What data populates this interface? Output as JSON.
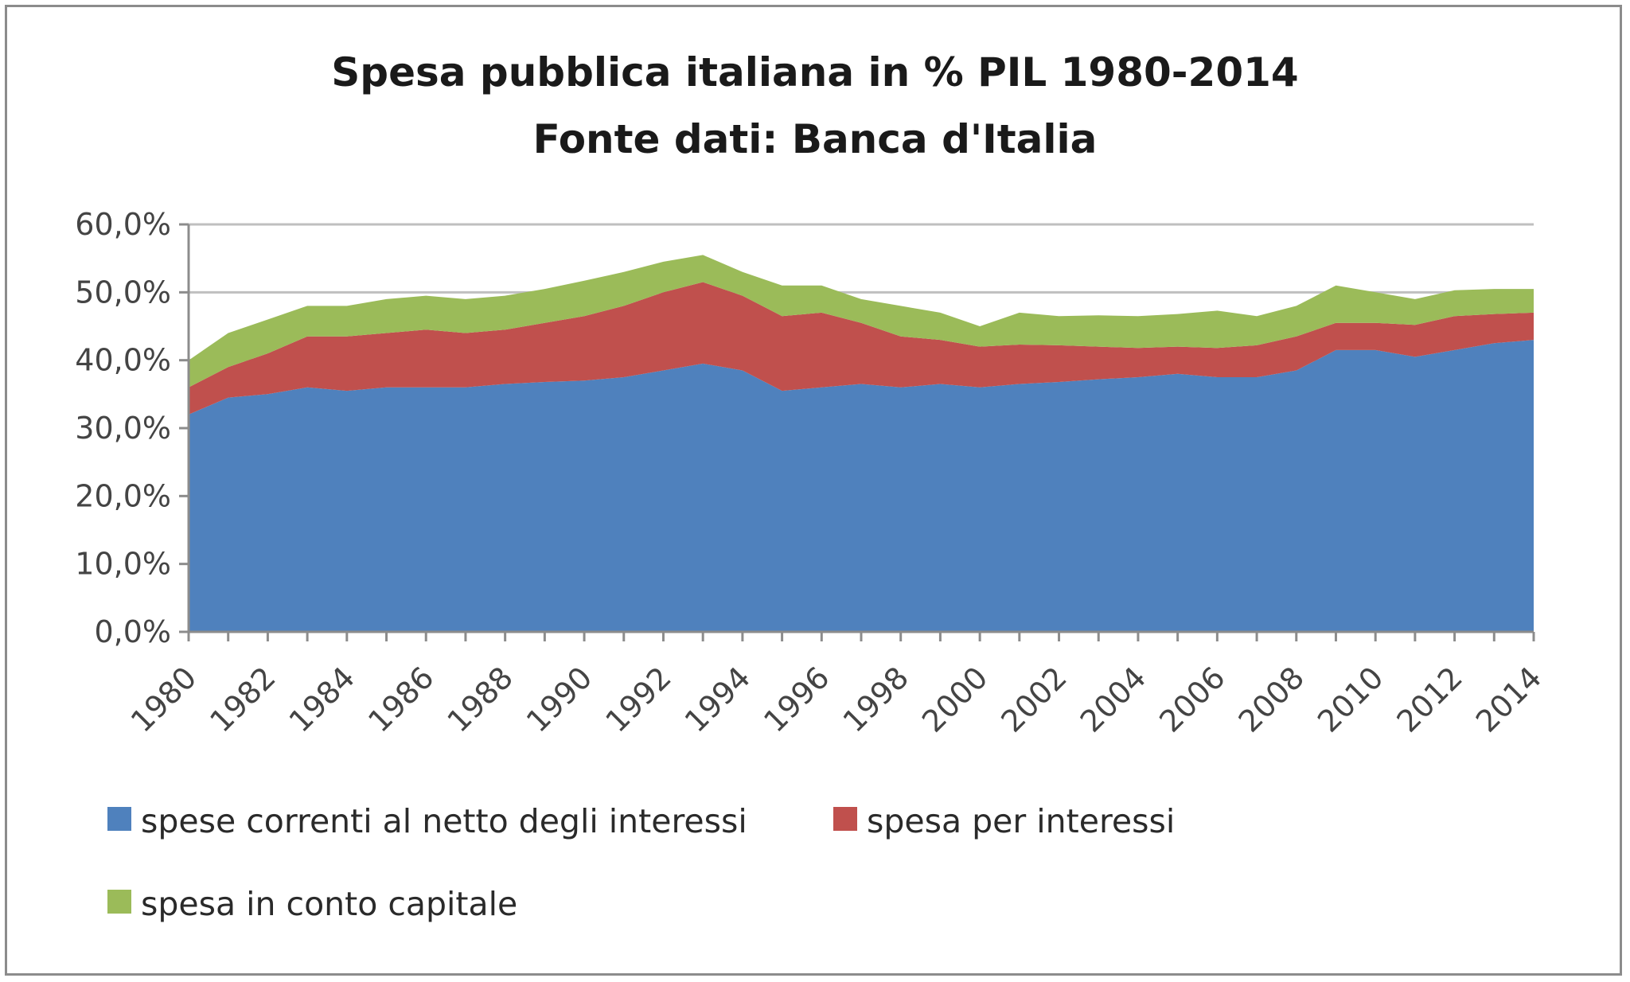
{
  "chart_data": {
    "type": "area",
    "stacked": true,
    "title": "Spesa pubblica italiana in % PIL 1980-2014",
    "subtitle": "Fonte dati: Banca d'Italia",
    "x": [
      1980,
      1981,
      1982,
      1983,
      1984,
      1985,
      1986,
      1987,
      1988,
      1989,
      1990,
      1991,
      1992,
      1993,
      1994,
      1995,
      1996,
      1997,
      1998,
      1999,
      2000,
      2001,
      2002,
      2003,
      2004,
      2005,
      2006,
      2007,
      2008,
      2009,
      2010,
      2011,
      2012,
      2013,
      2014
    ],
    "x_tick_labels": [
      "1980",
      "1982",
      "1984",
      "1986",
      "1988",
      "1990",
      "1992",
      "1994",
      "1996",
      "1998",
      "2000",
      "2002",
      "2004",
      "2006",
      "2008",
      "2010",
      "2012",
      "2014"
    ],
    "ylim": [
      0,
      60
    ],
    "y_ticks": [
      0,
      10,
      20,
      30,
      40,
      50,
      60
    ],
    "y_tick_labels": [
      "0,0%",
      "10,0%",
      "20,0%",
      "30,0%",
      "40,0%",
      "50,0%",
      "60,0%"
    ],
    "grid": "horizontal",
    "legend_position": "bottom",
    "series": [
      {
        "name": "spese correnti al netto degli interessi",
        "color": "#4f81bd",
        "values": [
          32.0,
          34.5,
          35.0,
          36.0,
          35.5,
          36.0,
          36.0,
          36.0,
          36.5,
          36.8,
          37.0,
          37.5,
          38.5,
          39.5,
          38.5,
          35.5,
          36.0,
          36.5,
          36.0,
          36.5,
          36.0,
          36.5,
          36.8,
          37.2,
          37.5,
          38.0,
          37.5,
          37.5,
          38.5,
          41.5,
          41.5,
          40.5,
          41.5,
          42.5,
          43.0
        ]
      },
      {
        "name": "spesa per interessi",
        "color": "#c0504d",
        "values": [
          4.0,
          4.5,
          6.0,
          7.5,
          8.0,
          8.0,
          8.5,
          8.0,
          8.0,
          8.7,
          9.5,
          10.5,
          11.5,
          12.0,
          11.0,
          11.0,
          11.0,
          9.0,
          7.5,
          6.5,
          6.0,
          5.8,
          5.4,
          4.8,
          4.3,
          4.0,
          4.3,
          4.7,
          5.0,
          4.0,
          4.0,
          4.7,
          5.0,
          4.3,
          4.0
        ]
      },
      {
        "name": "spesa in conto capitale",
        "color": "#9bbb59",
        "values": [
          4.0,
          5.0,
          5.0,
          4.5,
          4.5,
          5.0,
          5.0,
          5.0,
          5.0,
          5.0,
          5.2,
          5.0,
          4.5,
          4.0,
          3.5,
          4.5,
          4.0,
          3.5,
          4.5,
          4.0,
          3.0,
          4.7,
          4.3,
          4.6,
          4.7,
          4.8,
          5.5,
          4.3,
          4.5,
          5.5,
          4.5,
          3.8,
          3.8,
          3.7,
          3.5
        ]
      }
    ]
  }
}
